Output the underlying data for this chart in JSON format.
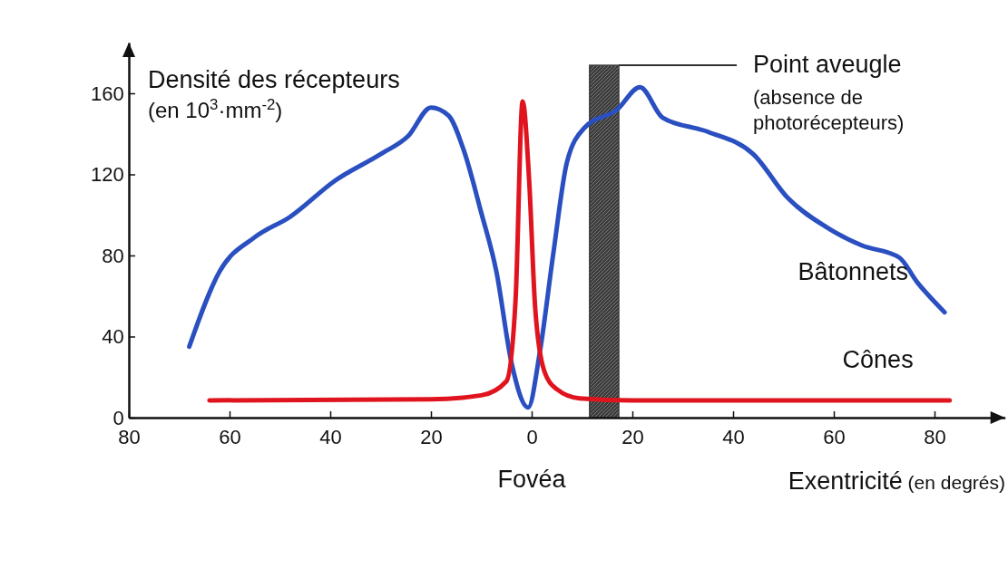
{
  "chart_data": {
    "type": "line",
    "ylabel": "Densité des récepteurs (en 10$^{3}$·mm$^{-2}$)",
    "xlabel": "Exentricité (en degrés)",
    "xlim": [
      -80,
      94
    ],
    "ylim": [
      0,
      185
    ],
    "xticks": [
      {
        "value": -80,
        "label": "80"
      },
      {
        "value": -60,
        "label": "60"
      },
      {
        "value": -40,
        "label": "40"
      },
      {
        "value": -20,
        "label": "20"
      },
      0,
      20,
      40,
      60,
      80
    ],
    "yticks": [
      0,
      40,
      80,
      120,
      160
    ],
    "grid": false,
    "legend": false,
    "marker": "none",
    "line_style": "solid",
    "series": [
      {
        "name": "Bâtonnets",
        "color": "#2a4fc0",
        "x": [
          -68,
          -62,
          -55,
          -48,
          -39,
          -30,
          -24.5,
          -20,
          -16.5,
          -13.5,
          -10,
          -7,
          -4,
          -0.7,
          1.6,
          4.3,
          7,
          10.5,
          17,
          21.5,
          26,
          35,
          44,
          51,
          58.5,
          65.5,
          73,
          76.5,
          82
        ],
        "values": [
          35,
          72,
          89,
          99,
          117,
          130,
          139,
          153,
          149,
          132,
          101,
          72,
          27,
          5,
          32,
          81,
          126,
          143,
          152,
          163,
          148,
          141,
          130,
          108,
          94,
          85,
          79,
          67,
          52
        ]
      },
      {
        "name": "Cônes",
        "color": "#e0141e",
        "x": [
          -64,
          -20,
          -10,
          -5,
          -3.2,
          -1.8,
          -0.5,
          0.7,
          2.5,
          5,
          9.5,
          20,
          83
        ],
        "values": [
          8.5,
          9,
          11,
          18,
          58,
          156,
          117,
          54,
          23,
          14,
          9.5,
          8.5,
          8.5
        ]
      }
    ],
    "bands": [
      {
        "axis": "x",
        "from": 11.5,
        "to": 17.3,
        "label": "Point aveugle (absence de photorécepteurs)",
        "color": "#3c3c3c"
      }
    ],
    "annotations": [
      "Fovéa"
    ]
  }
}
